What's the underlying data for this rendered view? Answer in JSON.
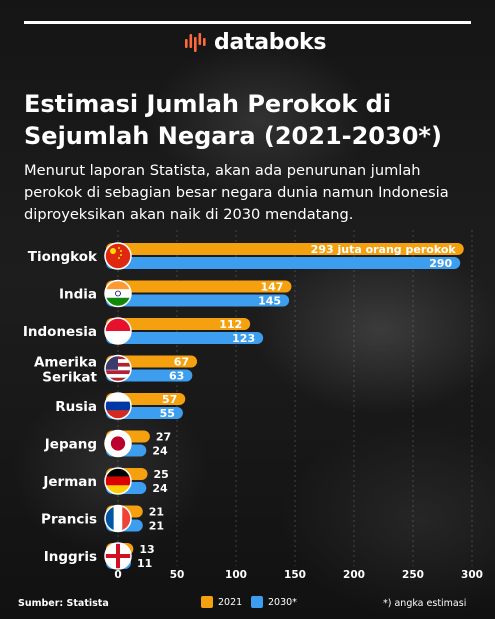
{
  "brand": {
    "name": "databoks"
  },
  "title": "Estimasi Jumlah Perokok di Sejumlah Negara (2021-2030*)",
  "subtitle": "Menurut laporan Statista, akan ada penurunan jumlah perokok di sebagian besar negara dunia namun Indonesia diproyeksikan akan naik di 2030 mendatang.",
  "colors": {
    "series_2021": "#f5a10f",
    "series_2030": "#3d9ef0"
  },
  "chart_data": {
    "type": "bar",
    "orientation": "horizontal",
    "categories": [
      "Tiongkok",
      "India",
      "Indonesia",
      "Amerika Serikat",
      "Rusia",
      "Jepang",
      "Jerman",
      "Prancis",
      "Inggris"
    ],
    "series": [
      {
        "name": "2021",
        "values": [
          293,
          147,
          112,
          67,
          57,
          27,
          25,
          21,
          13
        ]
      },
      {
        "name": "2030*",
        "values": [
          290,
          145,
          123,
          63,
          55,
          24,
          24,
          21,
          11
        ]
      }
    ],
    "first_label_2021": "293 juta orang perokok",
    "xticks": [
      0,
      50,
      100,
      150,
      200,
      250,
      300
    ],
    "xlim": [
      0,
      300
    ],
    "legend_position": "bottom"
  },
  "footer": {
    "source": "Sumber: Statista",
    "legend_2021": "2021",
    "legend_2030": "2030*",
    "note": "*) angka estimasi"
  }
}
